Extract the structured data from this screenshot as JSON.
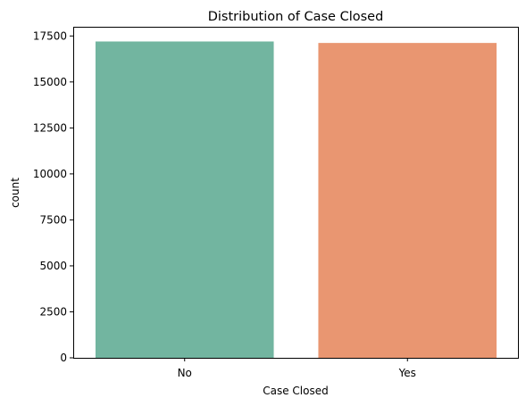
{
  "chart_data": {
    "type": "bar",
    "title": "Distribution of Case Closed",
    "xlabel": "Case Closed",
    "ylabel": "count",
    "categories": [
      "No",
      "Yes"
    ],
    "values": [
      17200,
      17120
    ],
    "colors": [
      "#72b5a0",
      "#e99671"
    ],
    "ylim": [
      0,
      18000
    ],
    "yticks": [
      0,
      2500,
      5000,
      7500,
      10000,
      12500,
      15000,
      17500
    ],
    "grid": false
  }
}
